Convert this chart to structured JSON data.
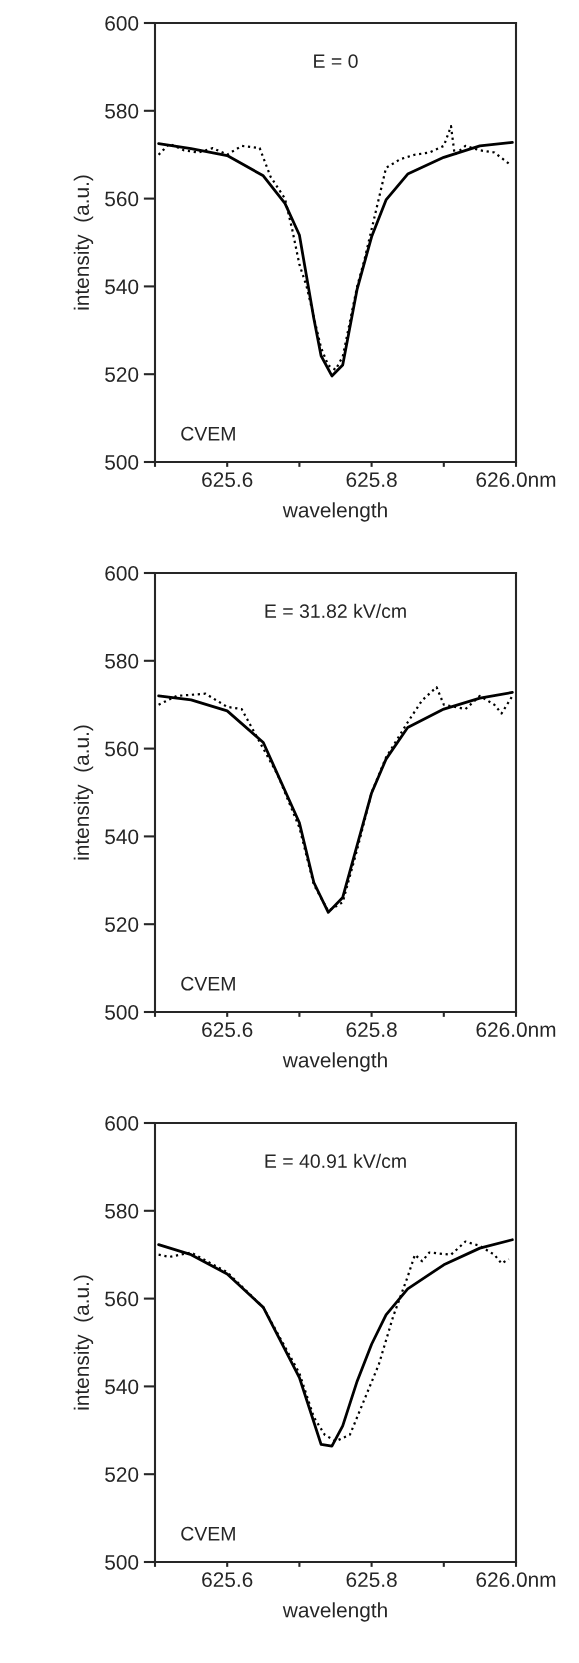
{
  "chart_data": [
    {
      "type": "line",
      "xlabel": "wavelength",
      "ylabel": "intensity  (a.u.)",
      "annotations": [
        "E = 0",
        "CVEM"
      ],
      "xlim": [
        625.5,
        626.0
      ],
      "xticks": [
        {
          "value": 625.5,
          "label": null
        },
        {
          "value": 625.6,
          "label": "625.6"
        },
        {
          "value": 625.7,
          "label": null
        },
        {
          "value": 625.8,
          "label": "625.8"
        },
        {
          "value": 625.9,
          "label": null
        },
        {
          "value": 626.0,
          "label": "626.0nm"
        }
      ],
      "ylim": [
        500,
        600
      ],
      "yticks": [
        500,
        520,
        540,
        560,
        580,
        600
      ],
      "grid": false,
      "series": [
        {
          "color": "#000000",
          "line_style": "solid",
          "x": [
            625.505,
            625.55,
            625.6,
            625.65,
            625.68,
            625.7,
            625.72,
            625.73,
            625.745,
            625.76,
            625.78,
            625.8,
            625.82,
            625.85,
            625.9,
            625.95,
            625.995
          ],
          "values": [
            572.5,
            571.4,
            569.8,
            565.2,
            558.9,
            551.7,
            532.7,
            524.2,
            519.6,
            522.1,
            539.4,
            551.3,
            559.7,
            565.6,
            569.4,
            572,
            572.8
          ]
        },
        {
          "color": "#000000",
          "line_style": "dotted",
          "x": [
            625.505,
            625.52,
            625.54,
            625.56,
            625.58,
            625.6,
            625.62,
            625.645,
            625.66,
            625.68,
            625.69,
            625.7,
            625.71,
            625.72,
            625.73,
            625.74,
            625.75,
            625.76,
            625.77,
            625.78,
            625.79,
            625.8,
            625.81,
            625.82,
            625.84,
            625.86,
            625.88,
            625.9,
            625.91,
            625.915,
            625.93,
            625.95,
            625.97,
            625.99
          ],
          "values": [
            570,
            572.5,
            571,
            570.5,
            571.5,
            570,
            572,
            571.5,
            565,
            560,
            553,
            545,
            540,
            533,
            526,
            522,
            521,
            524,
            532,
            540,
            546,
            553,
            560,
            567,
            569,
            570,
            570.5,
            572,
            576.5,
            570,
            572,
            571,
            570.5,
            568
          ]
        }
      ]
    },
    {
      "type": "line",
      "xlabel": "wavelength",
      "ylabel": "intensity  (a.u.)",
      "annotations": [
        "E = 31.82 kV/cm",
        "CVEM"
      ],
      "xlim": [
        625.5,
        626.0
      ],
      "xticks": [
        {
          "value": 625.5,
          "label": null
        },
        {
          "value": 625.6,
          "label": "625.6"
        },
        {
          "value": 625.7,
          "label": null
        },
        {
          "value": 625.8,
          "label": "625.8"
        },
        {
          "value": 625.9,
          "label": null
        },
        {
          "value": 626.0,
          "label": "626.0nm"
        }
      ],
      "ylim": [
        500,
        600
      ],
      "yticks": [
        500,
        520,
        540,
        560,
        580,
        600
      ],
      "grid": false,
      "series": [
        {
          "color": "#000000",
          "line_style": "solid",
          "x": [
            625.505,
            625.55,
            625.6,
            625.65,
            625.7,
            625.72,
            625.74,
            625.76,
            625.78,
            625.8,
            625.82,
            625.85,
            625.9,
            625.95,
            625.995
          ],
          "values": [
            572,
            571.1,
            568.6,
            561.4,
            543.1,
            529.5,
            522.7,
            526.1,
            538,
            549.9,
            557.6,
            564.8,
            569,
            571.5,
            572.8
          ]
        },
        {
          "color": "#000000",
          "line_style": "dotted",
          "x": [
            625.505,
            625.53,
            625.57,
            625.6,
            625.62,
            625.65,
            625.67,
            625.7,
            625.72,
            625.74,
            625.76,
            625.78,
            625.8,
            625.82,
            625.85,
            625.87,
            625.89,
            625.9,
            625.93,
            625.95,
            625.97,
            625.98,
            625.995
          ],
          "values": [
            570,
            572,
            572.5,
            569.5,
            569,
            560,
            554,
            542,
            529,
            523,
            525,
            537,
            550,
            558,
            566,
            571,
            574,
            570,
            569,
            572,
            570,
            568,
            572
          ]
        }
      ]
    },
    {
      "type": "line",
      "xlabel": "wavelength",
      "ylabel": "intensity  (a.u.)",
      "annotations": [
        "E = 40.91 kV/cm",
        "CVEM"
      ],
      "xlim": [
        625.5,
        626.0
      ],
      "xticks": [
        {
          "value": 625.5,
          "label": null
        },
        {
          "value": 625.6,
          "label": "625.6"
        },
        {
          "value": 625.7,
          "label": null
        },
        {
          "value": 625.8,
          "label": "625.8"
        },
        {
          "value": 625.9,
          "label": null
        },
        {
          "value": 626.0,
          "label": "626.0nm"
        }
      ],
      "ylim": [
        500,
        600
      ],
      "yticks": [
        500,
        520,
        540,
        560,
        580,
        600
      ],
      "grid": false,
      "series": [
        {
          "color": "#000000",
          "line_style": "solid",
          "x": [
            625.505,
            625.55,
            625.6,
            625.65,
            625.7,
            625.72,
            625.73,
            625.745,
            625.76,
            625.78,
            625.8,
            625.82,
            625.85,
            625.9,
            625.95,
            625.995
          ],
          "values": [
            572.3,
            570,
            565.6,
            558,
            542,
            531.9,
            526.8,
            526.4,
            531,
            541.2,
            549.6,
            556.3,
            562.2,
            567.7,
            571.5,
            573.4
          ]
        },
        {
          "color": "#000000",
          "line_style": "dotted",
          "x": [
            625.505,
            625.52,
            625.55,
            625.6,
            625.65,
            625.7,
            625.72,
            625.735,
            625.75,
            625.77,
            625.79,
            625.81,
            625.83,
            625.85,
            625.86,
            625.87,
            625.88,
            625.91,
            625.93,
            625.95,
            625.97,
            625.98,
            625.99
          ],
          "values": [
            570,
            569.5,
            570.5,
            566,
            558,
            543,
            533,
            529,
            527.5,
            529,
            537,
            545,
            556,
            565,
            570,
            568.5,
            570.5,
            570,
            573,
            572,
            570,
            568,
            569
          ]
        }
      ]
    }
  ]
}
